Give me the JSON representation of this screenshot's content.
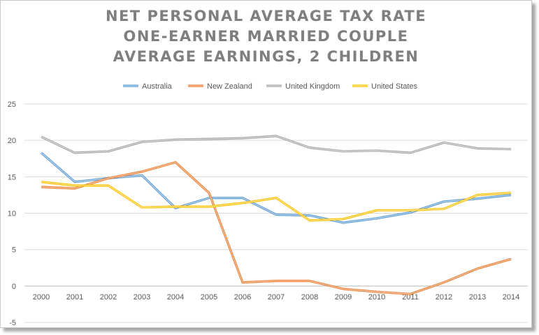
{
  "chart_data": {
    "type": "line",
    "title_lines": [
      "NET PERSONAL AVERAGE TAX RATE",
      "ONE-EARNER MARRIED COUPLE",
      "AVERAGE EARNINGS, 2 CHILDREN"
    ],
    "categories": [
      "2000",
      "2001",
      "2002",
      "2003",
      "2004",
      "2005",
      "2006",
      "2007",
      "2008",
      "2009",
      "2010",
      "2011",
      "2012",
      "2013",
      "2014"
    ],
    "series": [
      {
        "name": "Australia",
        "color": "#5b9bd5",
        "values": [
          18.3,
          14.3,
          14.8,
          15.2,
          10.7,
          12.1,
          12.1,
          9.8,
          9.7,
          8.7,
          9.3,
          10.1,
          11.6,
          12.0,
          12.5
        ]
      },
      {
        "name": "New Zealand",
        "color": "#ed7d31",
        "values": [
          13.6,
          13.4,
          14.8,
          15.7,
          17.0,
          12.8,
          0.5,
          0.7,
          0.7,
          -0.4,
          -0.8,
          -1.1,
          0.5,
          2.4,
          3.7
        ]
      },
      {
        "name": "United Kingdom",
        "color": "#a5a5a5",
        "values": [
          20.5,
          18.3,
          18.5,
          19.8,
          20.1,
          20.2,
          20.3,
          20.6,
          19.0,
          18.5,
          18.6,
          18.3,
          19.7,
          18.9,
          18.8
        ]
      },
      {
        "name": "United States",
        "color": "#ffc000",
        "values": [
          14.3,
          13.8,
          13.8,
          10.8,
          10.9,
          10.9,
          11.4,
          12.1,
          9.0,
          9.2,
          10.4,
          10.4,
          10.6,
          12.5,
          12.8
        ]
      }
    ],
    "y_ticks": [
      "25",
      "20",
      "15",
      "10",
      "5",
      "0",
      "-5"
    ],
    "ylim": [
      -5,
      25
    ],
    "grid": true,
    "legend_position": "top"
  }
}
